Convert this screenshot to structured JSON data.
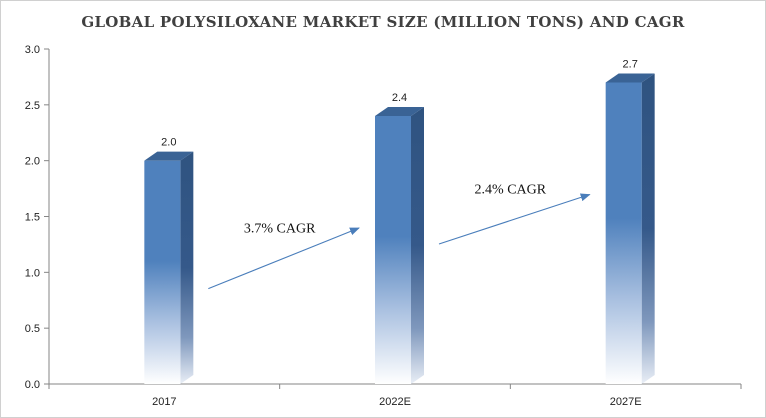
{
  "chart_data": {
    "type": "bar",
    "title": "GLOBAL POLYSILOXANE  MARKET SIZE  (MILLION TONS) AND CAGR",
    "categories": [
      "2017",
      "2022E",
      "2027E"
    ],
    "values": [
      2.0,
      2.4,
      2.7
    ],
    "data_labels": [
      "2.0",
      "2.4",
      "2.7"
    ],
    "ylim": [
      0,
      3.0
    ],
    "yticks": [
      "0.0",
      "0.5",
      "1.0",
      "1.5",
      "2.0",
      "2.5",
      "3.0"
    ],
    "xlabel": "",
    "ylabel": "",
    "grid": false,
    "legend": "none",
    "annotations": [
      {
        "text": "3.7% CAGR",
        "from": "2017",
        "to": "2022E"
      },
      {
        "text": "2.4% CAGR",
        "from": "2022E",
        "to": "2027E"
      }
    ],
    "colors": {
      "bar_front": "#4f81bd",
      "bar_side": "#2f5380",
      "bar_top": "#3a6395",
      "arrow": "#4a7ebb",
      "axis": "#868686"
    }
  }
}
